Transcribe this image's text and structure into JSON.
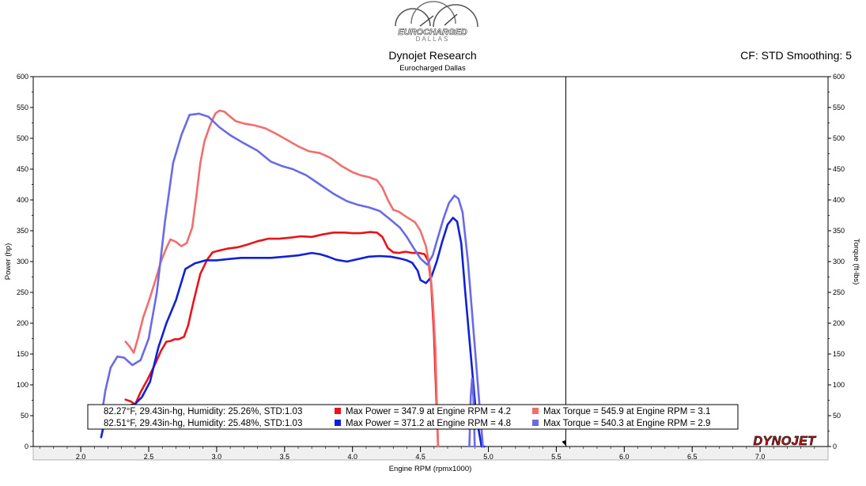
{
  "header": {
    "logo_text": "EUROCHARGED",
    "logo_subtext": "DALLAS",
    "title": "Dynojet Research",
    "subtitle": "Eurocharged Dallas",
    "cf_info": "CF: STD Smoothing: 5"
  },
  "brand": "DYNOJET",
  "colors": {
    "power_run1": "#e8141a",
    "power_run2": "#1020d8",
    "torque_run1": "#f06e6e",
    "torque_run2": "#6a6ae8",
    "background": "#ffffff",
    "axis_band": "#f0f0f0"
  },
  "legend": {
    "rows": [
      {
        "conditions": "82.27°F, 29.43in-hg, Humidity: 25.26%, STD:1.03",
        "max_power": "Max Power = 347.9 at Engine RPM = 4.2",
        "max_torque": "Max Torque = 545.9 at Engine RPM = 3.1",
        "power_color": "#e8141a",
        "torque_color": "#f06e6e"
      },
      {
        "conditions": "82.51°F, 29.43in-hg, Humidity: 25.48%, STD:1.03",
        "max_power": "Max Power = 371.2 at Engine RPM = 4.8",
        "max_torque": "Max Torque = 540.3 at Engine RPM = 2.9",
        "power_color": "#1020d8",
        "torque_color": "#6a6ae8"
      }
    ]
  },
  "chart_data": {
    "type": "line",
    "xlabel": "Engine RPM (rpmx1000)",
    "ylabel": "Power (hp)",
    "ylabel_right": "Torque (ft-lbs)",
    "xlim": [
      1.65,
      7.5
    ],
    "ylim": [
      0,
      600
    ],
    "x_ticks": [
      "2.0",
      "2.5",
      "3.0",
      "3.5",
      "4.0",
      "4.5",
      "5.0",
      "5.5",
      "6.0",
      "6.5",
      "7.0"
    ],
    "y_ticks": [
      "0",
      "50",
      "100",
      "150",
      "200",
      "250",
      "300",
      "350",
      "400",
      "450",
      "500",
      "550",
      "600"
    ],
    "cursor_rpm": 5.57,
    "series": [
      {
        "role": "power",
        "run": 1,
        "color": "#e8141a",
        "x": [
          2.33,
          2.37,
          2.4,
          2.44,
          2.49,
          2.55,
          2.59,
          2.63,
          2.66,
          2.69,
          2.72,
          2.76,
          2.79,
          2.83,
          2.88,
          2.93,
          2.97,
          3.02,
          3.08,
          3.15,
          3.22,
          3.3,
          3.38,
          3.46,
          3.55,
          3.62,
          3.7,
          3.78,
          3.86,
          3.94,
          4.0,
          4.06,
          4.13,
          4.18,
          4.22,
          4.26,
          4.3,
          4.34,
          4.39,
          4.44,
          4.49,
          4.53,
          4.56,
          4.58,
          4.6,
          4.62,
          4.63
        ],
        "y": [
          76,
          73,
          68,
          88,
          108,
          135,
          155,
          170,
          171,
          174,
          174,
          178,
          196,
          235,
          280,
          303,
          315,
          318,
          321,
          323,
          327,
          333,
          337,
          337,
          339,
          341,
          340,
          344,
          347,
          347,
          346,
          346,
          348,
          347,
          340,
          322,
          315,
          314,
          316,
          314,
          314,
          312,
          300,
          260,
          180,
          60,
          0
        ]
      },
      {
        "role": "power",
        "run": 2,
        "color": "#1020d8",
        "x": [
          2.15,
          2.17,
          2.2,
          2.26,
          2.33,
          2.4,
          2.45,
          2.51,
          2.57,
          2.63,
          2.7,
          2.77,
          2.84,
          2.92,
          3.0,
          3.08,
          3.18,
          3.28,
          3.4,
          3.5,
          3.6,
          3.7,
          3.76,
          3.82,
          3.88,
          3.96,
          4.04,
          4.12,
          4.2,
          4.28,
          4.35,
          4.4,
          4.44,
          4.48,
          4.5,
          4.54,
          4.58,
          4.62,
          4.66,
          4.7,
          4.74,
          4.77,
          4.8,
          4.83,
          4.87,
          4.91,
          4.95,
          4.97
        ],
        "y": [
          15,
          35,
          44,
          52,
          65,
          69,
          80,
          105,
          160,
          200,
          237,
          288,
          297,
          302,
          302,
          304,
          306,
          306,
          306,
          308,
          310,
          314,
          312,
          308,
          303,
          300,
          304,
          308,
          309,
          308,
          305,
          302,
          298,
          285,
          270,
          265,
          275,
          300,
          332,
          360,
          371,
          365,
          330,
          250,
          150,
          50,
          0,
          0
        ]
      },
      {
        "role": "torque",
        "run": 1,
        "color": "#f06e6e",
        "x": [
          2.33,
          2.36,
          2.39,
          2.42,
          2.46,
          2.5,
          2.55,
          2.59,
          2.63,
          2.66,
          2.7,
          2.74,
          2.78,
          2.82,
          2.85,
          2.88,
          2.91,
          2.95,
          2.99,
          3.02,
          3.06,
          3.1,
          3.14,
          3.2,
          3.28,
          3.36,
          3.44,
          3.52,
          3.6,
          3.68,
          3.76,
          3.84,
          3.92,
          4.0,
          4.06,
          4.12,
          4.18,
          4.22,
          4.26,
          4.3,
          4.34,
          4.4,
          4.46,
          4.5,
          4.54,
          4.57,
          4.59,
          4.61,
          4.62,
          4.63
        ],
        "y": [
          170,
          162,
          152,
          175,
          210,
          235,
          270,
          300,
          322,
          336,
          332,
          325,
          330,
          355,
          405,
          460,
          495,
          520,
          540,
          545,
          543,
          535,
          528,
          524,
          521,
          516,
          507,
          497,
          487,
          479,
          476,
          468,
          455,
          445,
          440,
          437,
          432,
          420,
          400,
          384,
          381,
          372,
          364,
          350,
          325,
          290,
          240,
          160,
          80,
          0
        ]
      },
      {
        "role": "torque",
        "run": 2,
        "color": "#6a6ae8",
        "x": [
          2.15,
          2.18,
          2.22,
          2.27,
          2.32,
          2.38,
          2.44,
          2.5,
          2.56,
          2.62,
          2.68,
          2.74,
          2.8,
          2.87,
          2.94,
          3.02,
          3.1,
          3.2,
          3.3,
          3.4,
          3.48,
          3.56,
          3.66,
          3.76,
          3.86,
          3.96,
          4.04,
          4.12,
          4.2,
          4.28,
          4.35,
          4.4,
          4.45,
          4.5,
          4.55,
          4.59,
          4.63,
          4.67,
          4.71,
          4.75,
          4.78,
          4.81,
          4.85,
          4.89,
          4.93,
          4.96
        ],
        "y": [
          45,
          90,
          128,
          146,
          144,
          132,
          140,
          175,
          250,
          365,
          460,
          505,
          538,
          540,
          535,
          518,
          505,
          492,
          480,
          462,
          455,
          450,
          440,
          425,
          410,
          398,
          392,
          388,
          382,
          368,
          355,
          340,
          322,
          305,
          295,
          310,
          340,
          370,
          395,
          407,
          402,
          380,
          300,
          190,
          80,
          0
        ]
      },
      {
        "role": "torque",
        "run": 2,
        "color": "#6a6ae8",
        "x": [
          4.86,
          4.87,
          4.88,
          4.89,
          4.9
        ],
        "y": [
          0,
          80,
          110,
          80,
          0
        ]
      }
    ]
  }
}
